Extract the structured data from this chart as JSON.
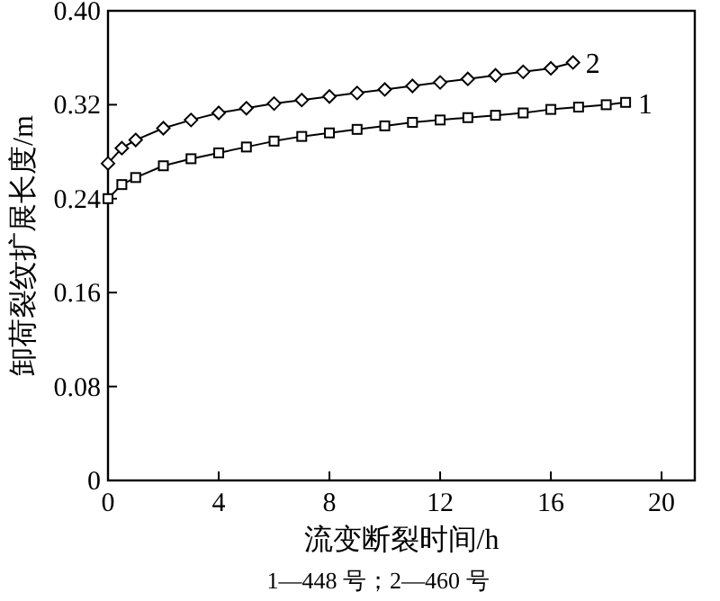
{
  "chart_data": {
    "type": "line",
    "xlabel": "流变断裂时间/h",
    "ylabel": "卸荷裂纹扩展长度/m",
    "annotations": [
      "1—448 号；2—460 号"
    ],
    "xlim": [
      0,
      21.2
    ],
    "ylim": [
      0,
      0.4
    ],
    "xticks": [
      0,
      4,
      8,
      12,
      16,
      20
    ],
    "yticks": [
      0,
      0.08,
      0.16,
      0.24,
      0.32,
      {
        "value": 0.4,
        "label": "0.40"
      }
    ],
    "grid": false,
    "series": [
      {
        "name": "1",
        "color": "#000000",
        "marker": "square",
        "x": [
          0,
          0.5,
          1,
          2,
          3,
          4,
          5,
          6,
          7,
          8,
          9,
          10,
          11,
          12,
          13,
          14,
          15,
          16,
          17,
          18,
          18.7
        ],
        "values": [
          0.24,
          0.252,
          0.258,
          0.268,
          0.274,
          0.279,
          0.284,
          0.289,
          0.293,
          0.296,
          0.299,
          0.302,
          0.305,
          0.307,
          0.309,
          0.311,
          0.313,
          0.316,
          0.318,
          0.32,
          0.322
        ]
      },
      {
        "name": "2",
        "color": "#000000",
        "marker": "diamond",
        "x": [
          0,
          0.5,
          1,
          2,
          3,
          4,
          5,
          6,
          7,
          8,
          9,
          10,
          11,
          12,
          13,
          14,
          15,
          16,
          16.8
        ],
        "values": [
          0.27,
          0.283,
          0.29,
          0.3,
          0.307,
          0.313,
          0.317,
          0.321,
          0.324,
          0.327,
          0.33,
          0.333,
          0.336,
          0.339,
          0.342,
          0.345,
          0.348,
          0.351,
          0.356
        ]
      }
    ]
  }
}
